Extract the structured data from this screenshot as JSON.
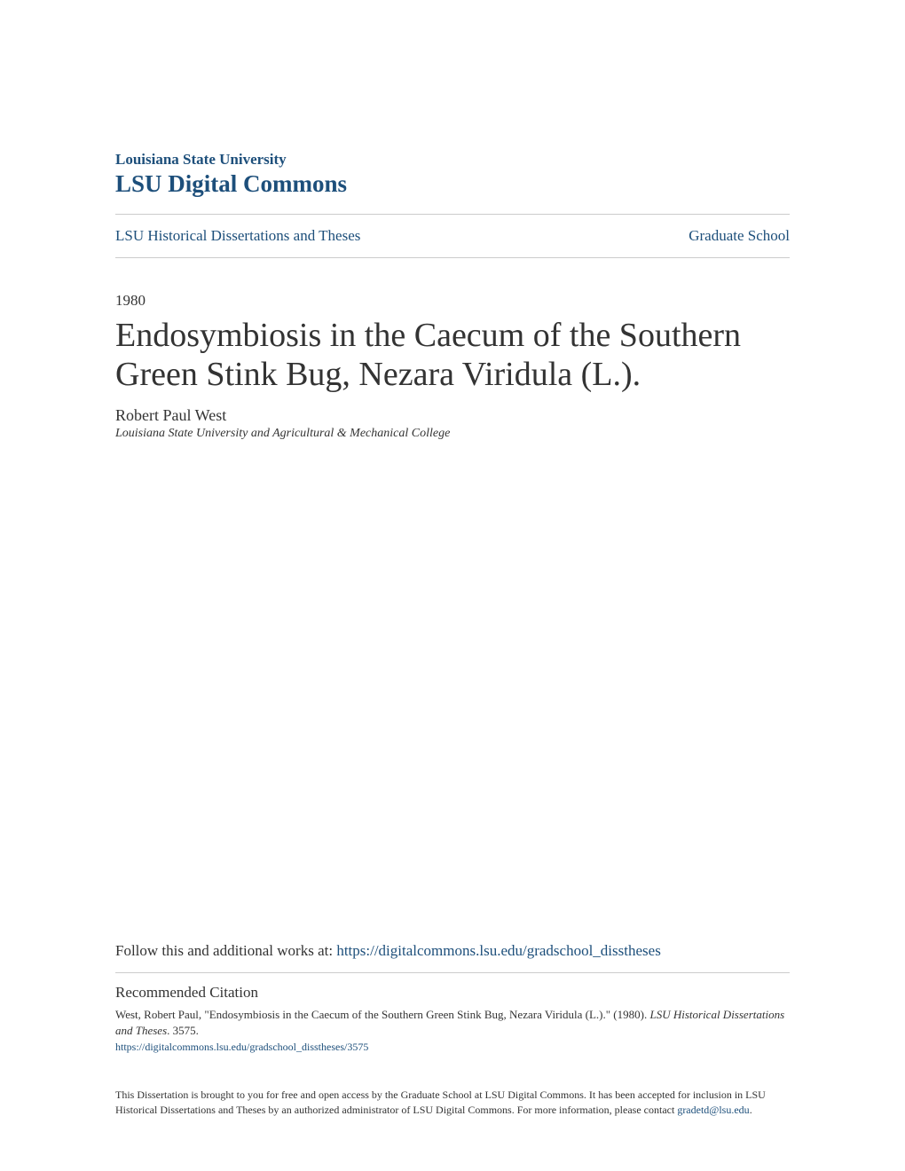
{
  "header": {
    "institution": "Louisiana State University",
    "commons": "LSU Digital Commons"
  },
  "nav": {
    "left": "LSU Historical Dissertations and Theses",
    "right": "Graduate School"
  },
  "document": {
    "year": "1980",
    "title": "Endosymbiosis in the Caecum of the Southern Green Stink Bug, Nezara Viridula (L.).",
    "author": "Robert Paul West",
    "affiliation": "Louisiana State University and Agricultural & Mechanical College"
  },
  "follow": {
    "prefix": "Follow this and additional works at: ",
    "url": "https://digitalcommons.lsu.edu/gradschool_disstheses"
  },
  "citation": {
    "heading": "Recommended Citation",
    "text_part1": "West, Robert Paul, \"Endosymbiosis in the Caecum of the Southern Green Stink Bug, Nezara Viridula (L.).\" (1980). ",
    "text_italic": "LSU Historical Dissertations and Theses",
    "text_part2": ". 3575.",
    "url": "https://digitalcommons.lsu.edu/gradschool_disstheses/3575"
  },
  "disclaimer": {
    "text": "This Dissertation is brought to you for free and open access by the Graduate School at LSU Digital Commons. It has been accepted for inclusion in LSU Historical Dissertations and Theses by an authorized administrator of LSU Digital Commons. For more information, please contact ",
    "email": "gradetd@lsu.edu",
    "suffix": "."
  },
  "colors": {
    "link": "#1d4f7b",
    "text": "#333333",
    "divider": "#cccccc",
    "background": "#ffffff"
  }
}
